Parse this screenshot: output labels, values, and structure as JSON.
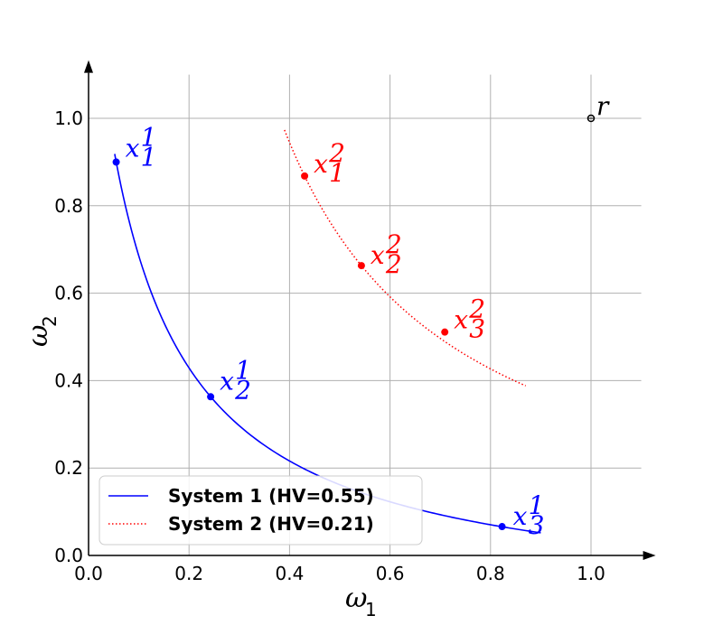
{
  "chart_data": {
    "type": "line",
    "xlabel": {
      "base": "ω",
      "sub": "1"
    },
    "ylabel": {
      "base": "ω",
      "sub": "2"
    },
    "xlim": [
      0.0,
      1.1
    ],
    "ylim": [
      0.0,
      1.1
    ],
    "xticks": [
      "0.0",
      "0.2",
      "0.4",
      "0.6",
      "0.8",
      "1.0"
    ],
    "yticks": [
      "0.0",
      "0.2",
      "0.4",
      "0.6",
      "0.8",
      "1.0"
    ],
    "grid": true,
    "legend_position": "lower-left",
    "reference_point": {
      "label": "r",
      "x": 1.0,
      "y": 1.0
    },
    "series": [
      {
        "name": "System 1 (HV=0.55)",
        "color": "#0000ff",
        "style": "solid",
        "curve_x_range": [
          0.052,
          0.9
        ],
        "points": [
          {
            "base": "x",
            "sup": "1",
            "sub": "1",
            "x": 0.055,
            "y": 0.9
          },
          {
            "base": "x",
            "sup": "1",
            "sub": "2",
            "x": 0.243,
            "y": 0.363
          },
          {
            "base": "x",
            "sup": "1",
            "sub": "3",
            "x": 0.823,
            "y": 0.066
          }
        ]
      },
      {
        "name": "System 2 (HV=0.21)",
        "color": "#ff0000",
        "style": "dotted",
        "curve_x_range": [
          0.39,
          0.87
        ],
        "points": [
          {
            "base": "x",
            "sup": "2",
            "sub": "1",
            "x": 0.43,
            "y": 0.868
          },
          {
            "base": "x",
            "sup": "2",
            "sub": "2",
            "x": 0.543,
            "y": 0.663
          },
          {
            "base": "x",
            "sup": "2",
            "sub": "3",
            "x": 0.709,
            "y": 0.511
          }
        ]
      }
    ]
  }
}
